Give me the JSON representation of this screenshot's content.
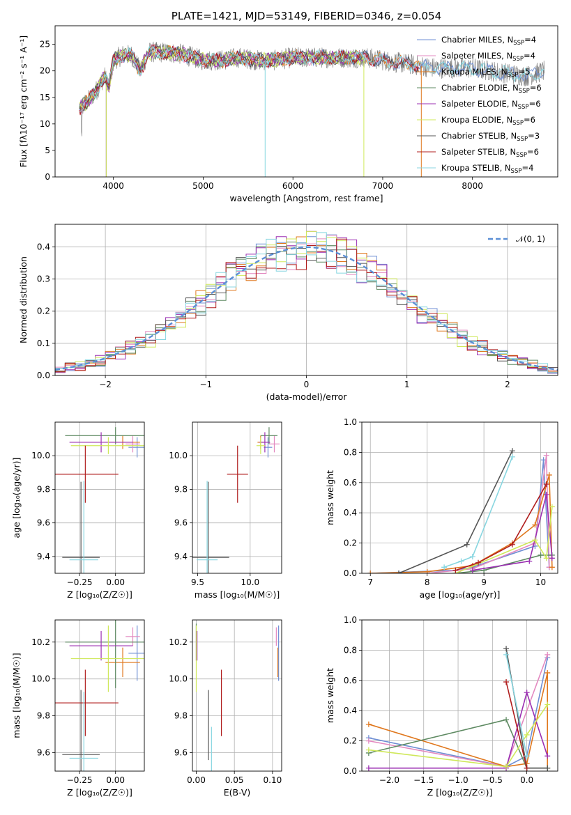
{
  "colors": {
    "Chabrier MILES": "#6f8fd4",
    "Salpeter MILES": "#e389c0",
    "Kroupa MILES": "#e0781e",
    "Chabrier ELODIE": "#5e8a62",
    "Salpeter ELODIE": "#9b2fb2",
    "Kroupa ELODIE": "#cfe85a",
    "Chabrier STELIB": "#555555",
    "Salpeter STELIB": "#b01d1d",
    "Kroupa STELIB": "#88d6e0",
    "normal": "#5b8fd6"
  },
  "chart_data": [
    {
      "id": "spectrum",
      "type": "line",
      "title": "PLATE=1421, MJD=53149, FIBERID=0346, z=0.054",
      "xlabel": "wavelength [Angstrom, rest frame]",
      "ylabel": "Flux [fλ10⁻¹⁷ erg cm⁻² s⁻¹ A⁻¹]",
      "xlim": [
        3350,
        8950
      ],
      "ylim": [
        0,
        28.5
      ],
      "xticks": [
        "4000",
        "5000",
        "6000",
        "7000",
        "8000"
      ],
      "yticks": [
        "0",
        "5",
        "10",
        "15",
        "20",
        "25"
      ],
      "legend_position": "top-right",
      "legend": [
        {
          "name": "Chabrier MILES",
          "nssp": "4"
        },
        {
          "name": "Salpeter MILES",
          "nssp": "4"
        },
        {
          "name": "Kroupa MILES",
          "nssp": "5"
        },
        {
          "name": "Chabrier ELODIE",
          "nssp": "6"
        },
        {
          "name": "Salpeter ELODIE",
          "nssp": "6"
        },
        {
          "name": "Kroupa ELODIE",
          "nssp": "6"
        },
        {
          "name": "Chabrier STELIB",
          "nssp": "3"
        },
        {
          "name": "Salpeter STELIB",
          "nssp": "6"
        },
        {
          "name": "Kroupa STELIB",
          "nssp": "4"
        }
      ],
      "legend_suffix": "N",
      "legend_sub": "SSP",
      "model_trace": {
        "x": [
          3620,
          3700,
          3800,
          3900,
          3950,
          4000,
          4100,
          4200,
          4300,
          4350,
          4400,
          4600,
          4800,
          5000,
          5200,
          5400,
          5600,
          5800,
          6000,
          6200,
          6400,
          6600,
          6800,
          7000,
          7200,
          7400,
          7600,
          7800,
          8000,
          8200,
          8400,
          8600,
          8800
        ],
        "y": [
          13,
          14,
          16,
          19,
          17,
          22,
          23,
          23,
          20,
          22,
          23.5,
          23.5,
          23,
          22,
          22,
          22.5,
          22,
          22,
          22.5,
          22.5,
          22.5,
          22.5,
          22.5,
          22,
          21.5,
          21,
          20.5,
          20.5,
          20.5,
          20,
          19.5,
          19,
          20
        ]
      }
    },
    {
      "id": "residuals",
      "type": "histogram",
      "xlabel": "(data-model)/error",
      "ylabel": "Normed distribution",
      "xlim": [
        -2.5,
        2.5
      ],
      "ylim": [
        0,
        0.47
      ],
      "xticks": [
        "−2",
        "−1",
        "0",
        "1",
        "2"
      ],
      "yticks": [
        "0.0",
        "0.1",
        "0.2",
        "0.3",
        "0.4"
      ],
      "grid": true,
      "bin_width": 0.1,
      "normal_label": "𝒩(0, 1)",
      "legend_position": "top-right"
    },
    {
      "id": "age-vs-Z",
      "type": "errorbar",
      "xlabel": "Z [log₁₀(Z/Z☉)]",
      "ylabel": "age  [log₁₀(age/yr)]",
      "xlim": [
        -0.42,
        0.2
      ],
      "ylim": [
        9.3,
        10.2
      ],
      "xticks": [
        "−0.25",
        "0.00"
      ],
      "yticks": [
        "9.4",
        "9.6",
        "9.8",
        "10.0"
      ],
      "grid": true,
      "points": [
        {
          "series": "Chabrier MILES",
          "x": 0.15,
          "y": 10.05,
          "xerr": 0.06,
          "yerr": 0.06
        },
        {
          "series": "Salpeter MILES",
          "x": 0.12,
          "y": 10.07,
          "xerr": 0.05,
          "yerr": 0.05
        },
        {
          "series": "Kroupa MILES",
          "x": 0.05,
          "y": 10.08,
          "xerr": 0.12,
          "yerr": 0.04
        },
        {
          "series": "Chabrier ELODIE",
          "x": 0.0,
          "y": 10.12,
          "xerr": 0.35,
          "yerr": 0.05
        },
        {
          "series": "Salpeter ELODIE",
          "x": -0.1,
          "y": 10.08,
          "xerr": 0.22,
          "yerr": 0.06
        },
        {
          "series": "Kroupa ELODIE",
          "x": -0.05,
          "y": 10.06,
          "xerr": 0.26,
          "yerr": 0.05
        },
        {
          "series": "Chabrier STELIB",
          "x": -0.24,
          "y": 9.395,
          "xerr": 0.13,
          "yerr": 0.45
        },
        {
          "series": "Salpeter STELIB",
          "x": -0.21,
          "y": 9.89,
          "xerr": 0.23,
          "yerr": 0.17
        },
        {
          "series": "Kroupa STELIB",
          "x": -0.22,
          "y": 9.38,
          "xerr": 0.1,
          "yerr": 0.47
        }
      ]
    },
    {
      "id": "age-vs-mass",
      "type": "errorbar",
      "xlabel": "mass [log₁₀(M/M☉)]",
      "ylabel": "",
      "xlim": [
        9.45,
        10.3
      ],
      "ylim": [
        9.3,
        10.2
      ],
      "xticks": [
        "9.5",
        "10.0"
      ],
      "yticks": [
        "9.4",
        "9.6",
        "9.8",
        "10.0"
      ],
      "grid": true,
      "points": [
        {
          "series": "Chabrier MILES",
          "x": 10.17,
          "y": 10.05,
          "xerr": 0.04,
          "yerr": 0.06
        },
        {
          "series": "Salpeter MILES",
          "x": 10.23,
          "y": 10.07,
          "xerr": 0.05,
          "yerr": 0.05
        },
        {
          "series": "Kroupa MILES",
          "x": 10.1,
          "y": 10.08,
          "xerr": 0.03,
          "yerr": 0.04
        },
        {
          "series": "Chabrier ELODIE",
          "x": 10.18,
          "y": 10.12,
          "xerr": 0.08,
          "yerr": 0.05
        },
        {
          "series": "Salpeter ELODIE",
          "x": 10.14,
          "y": 10.08,
          "xerr": 0.05,
          "yerr": 0.06
        },
        {
          "series": "Kroupa ELODIE",
          "x": 10.1,
          "y": 10.06,
          "xerr": 0.04,
          "yerr": 0.05
        },
        {
          "series": "Chabrier STELIB",
          "x": 9.6,
          "y": 9.395,
          "xerr": 0.2,
          "yerr": 0.45
        },
        {
          "series": "Salpeter STELIB",
          "x": 9.88,
          "y": 9.89,
          "xerr": 0.1,
          "yerr": 0.17
        },
        {
          "series": "Kroupa STELIB",
          "x": 9.59,
          "y": 9.38,
          "xerr": 0.1,
          "yerr": 0.47
        }
      ]
    },
    {
      "id": "mass-weight-vs-age",
      "type": "line",
      "xlabel": "age  [log₁₀(age/yr)]",
      "ylabel": "mass weight",
      "xlim": [
        6.85,
        10.3
      ],
      "ylim": [
        0,
        1.0
      ],
      "xticks": [
        "7",
        "8",
        "9",
        "10"
      ],
      "yticks": [
        "0.0",
        "0.2",
        "0.4",
        "0.6",
        "0.8",
        "1.0"
      ],
      "grid": true,
      "series": [
        {
          "name": "Chabrier MILES",
          "x": [
            7.0,
            8.5,
            8.8,
            9.9,
            10.05,
            10.15
          ],
          "y": [
            0.0,
            0.02,
            0.04,
            0.18,
            0.75,
            0.04
          ]
        },
        {
          "name": "Salpeter MILES",
          "x": [
            8.0,
            8.8,
            9.9,
            10.1,
            10.15
          ],
          "y": [
            0.0,
            0.03,
            0.2,
            0.78,
            0.04
          ]
        },
        {
          "name": "Kroupa MILES",
          "x": [
            7.0,
            8.0,
            8.8,
            9.5,
            9.9,
            10.15,
            10.2
          ],
          "y": [
            0.0,
            0.01,
            0.05,
            0.2,
            0.32,
            0.65,
            0.04
          ]
        },
        {
          "name": "Chabrier ELODIE",
          "x": [
            8.5,
            9.0,
            10.0,
            10.2
          ],
          "y": [
            0.0,
            0.02,
            0.12,
            0.12
          ]
        },
        {
          "name": "Salpeter ELODIE",
          "x": [
            8.8,
            9.8,
            10.1,
            10.2
          ],
          "y": [
            0.02,
            0.08,
            0.52,
            0.1
          ]
        },
        {
          "name": "Kroupa ELODIE",
          "x": [
            8.5,
            9.9,
            10.1,
            10.2
          ],
          "y": [
            0.0,
            0.22,
            0.1,
            0.44
          ]
        },
        {
          "name": "Chabrier STELIB",
          "x": [
            7.5,
            8.7,
            9.5
          ],
          "y": [
            0.0,
            0.19,
            0.81
          ]
        },
        {
          "name": "Salpeter STELIB",
          "x": [
            8.5,
            8.9,
            9.5,
            10.1
          ],
          "y": [
            0.02,
            0.07,
            0.19,
            0.59
          ]
        },
        {
          "name": "Kroupa STELIB",
          "x": [
            8.3,
            8.6,
            8.8,
            9.5
          ],
          "y": [
            0.04,
            0.08,
            0.11,
            0.77
          ]
        }
      ]
    },
    {
      "id": "mass-vs-Z",
      "type": "errorbar",
      "xlabel": "Z [log₁₀(Z/Z☉)]",
      "ylabel": "mass [log₁₀(M/M☉)]",
      "xlim": [
        -0.42,
        0.2
      ],
      "ylim": [
        9.5,
        10.32
      ],
      "xticks": [
        "−0.25",
        "0.00"
      ],
      "yticks": [
        "9.6",
        "9.8",
        "10.0",
        "10.2"
      ],
      "grid": true,
      "points": [
        {
          "series": "Chabrier MILES",
          "x": 0.15,
          "y": 10.14,
          "xerr": 0.06,
          "yerr": 0.15
        },
        {
          "series": "Salpeter MILES",
          "x": 0.12,
          "y": 10.23,
          "xerr": 0.05,
          "yerr": 0.05
        },
        {
          "series": "Kroupa MILES",
          "x": 0.05,
          "y": 10.09,
          "xerr": 0.12,
          "yerr": 0.08
        },
        {
          "series": "Chabrier ELODIE",
          "x": 0.0,
          "y": 10.2,
          "xerr": 0.35,
          "yerr": 0.25
        },
        {
          "series": "Salpeter ELODIE",
          "x": -0.1,
          "y": 10.18,
          "xerr": 0.22,
          "yerr": 0.08
        },
        {
          "series": "Kroupa ELODIE",
          "x": -0.05,
          "y": 10.11,
          "xerr": 0.26,
          "yerr": 0.18
        },
        {
          "series": "Chabrier STELIB",
          "x": -0.24,
          "y": 9.59,
          "xerr": 0.13,
          "yerr": 0.35
        },
        {
          "series": "Salpeter STELIB",
          "x": -0.21,
          "y": 9.87,
          "xerr": 0.23,
          "yerr": 0.18
        },
        {
          "series": "Kroupa STELIB",
          "x": -0.22,
          "y": 9.57,
          "xerr": 0.1,
          "yerr": 0.36
        }
      ]
    },
    {
      "id": "mass-vs-EBV",
      "type": "errorbar",
      "xlabel": "E(B-V)",
      "ylabel": "",
      "xlim": [
        -0.005,
        0.112
      ],
      "ylim": [
        9.5,
        10.32
      ],
      "xticks": [
        "0.00",
        "0.05",
        "0.10"
      ],
      "yticks": [
        "9.6",
        "9.8",
        "10.0",
        "10.2"
      ],
      "grid": true,
      "points": [
        {
          "series": "Chabrier MILES",
          "x": 0.108,
          "y": 10.14,
          "xerr": 0,
          "yerr": 0.15
        },
        {
          "series": "Salpeter MILES",
          "x": 0.105,
          "y": 10.23,
          "xerr": 0,
          "yerr": 0.05
        },
        {
          "series": "Kroupa MILES",
          "x": 0.107,
          "y": 10.09,
          "xerr": 0,
          "yerr": 0.08
        },
        {
          "series": "Chabrier ELODIE",
          "x": 0.0,
          "y": 10.2,
          "xerr": 0,
          "yerr": 0.1
        },
        {
          "series": "Salpeter ELODIE",
          "x": 0.001,
          "y": 10.18,
          "xerr": 0,
          "yerr": 0.08
        },
        {
          "series": "Kroupa ELODIE",
          "x": 0.0,
          "y": 10.11,
          "xerr": 0,
          "yerr": 0.18
        },
        {
          "series": "Chabrier STELIB",
          "x": 0.016,
          "y": 9.75,
          "xerr": 0,
          "yerr": 0.19
        },
        {
          "series": "Salpeter STELIB",
          "x": 0.033,
          "y": 9.87,
          "xerr": 0,
          "yerr": 0.18
        },
        {
          "series": "Kroupa STELIB",
          "x": 0.02,
          "y": 9.6,
          "xerr": 0,
          "yerr": 0.14
        }
      ]
    },
    {
      "id": "mass-weight-vs-Z",
      "type": "line",
      "xlabel": "Z [log₁₀(Z/Z☉)]",
      "ylabel": "mass weight",
      "xlim": [
        -2.4,
        0.45
      ],
      "ylim": [
        0,
        1.0
      ],
      "xticks": [
        "−2.0",
        "−1.5",
        "−1.0",
        "−0.5",
        "0.0"
      ],
      "yticks": [
        "0.0",
        "0.2",
        "0.4",
        "0.6",
        "0.8",
        "1.0"
      ],
      "grid": true,
      "series": [
        {
          "name": "Chabrier MILES",
          "x": [
            -2.3,
            -0.3,
            0.0,
            0.3
          ],
          "y": [
            0.22,
            0.03,
            0.1,
            0.75
          ]
        },
        {
          "name": "Salpeter MILES",
          "x": [
            -2.3,
            -0.3,
            0.3
          ],
          "y": [
            0.2,
            0.03,
            0.77
          ]
        },
        {
          "name": "Kroupa MILES",
          "x": [
            -2.3,
            -0.3,
            0.0,
            0.3,
            0.3
          ],
          "y": [
            0.31,
            0.03,
            0.05,
            0.65,
            0.02
          ]
        },
        {
          "name": "Chabrier ELODIE",
          "x": [
            -2.3,
            -0.3,
            0.0,
            0.3
          ],
          "y": [
            0.12,
            0.34,
            0.02,
            0.02
          ]
        },
        {
          "name": "Salpeter ELODIE",
          "x": [
            -2.3,
            -0.3,
            0.0,
            0.3
          ],
          "y": [
            0.02,
            0.02,
            0.52,
            0.1
          ]
        },
        {
          "name": "Kroupa ELODIE",
          "x": [
            -2.3,
            -0.3,
            0.0,
            0.3
          ],
          "y": [
            0.14,
            0.03,
            0.24,
            0.44
          ]
        },
        {
          "name": "Chabrier STELIB",
          "x": [
            -0.3,
            0.0,
            0.3
          ],
          "y": [
            0.81,
            0.02,
            0.02
          ]
        },
        {
          "name": "Salpeter STELIB",
          "x": [
            -0.3,
            0.0
          ],
          "y": [
            0.59,
            0.02
          ]
        },
        {
          "name": "Kroupa STELIB",
          "x": [
            -0.3,
            0.0
          ],
          "y": [
            0.77,
            0.1
          ]
        }
      ]
    }
  ]
}
